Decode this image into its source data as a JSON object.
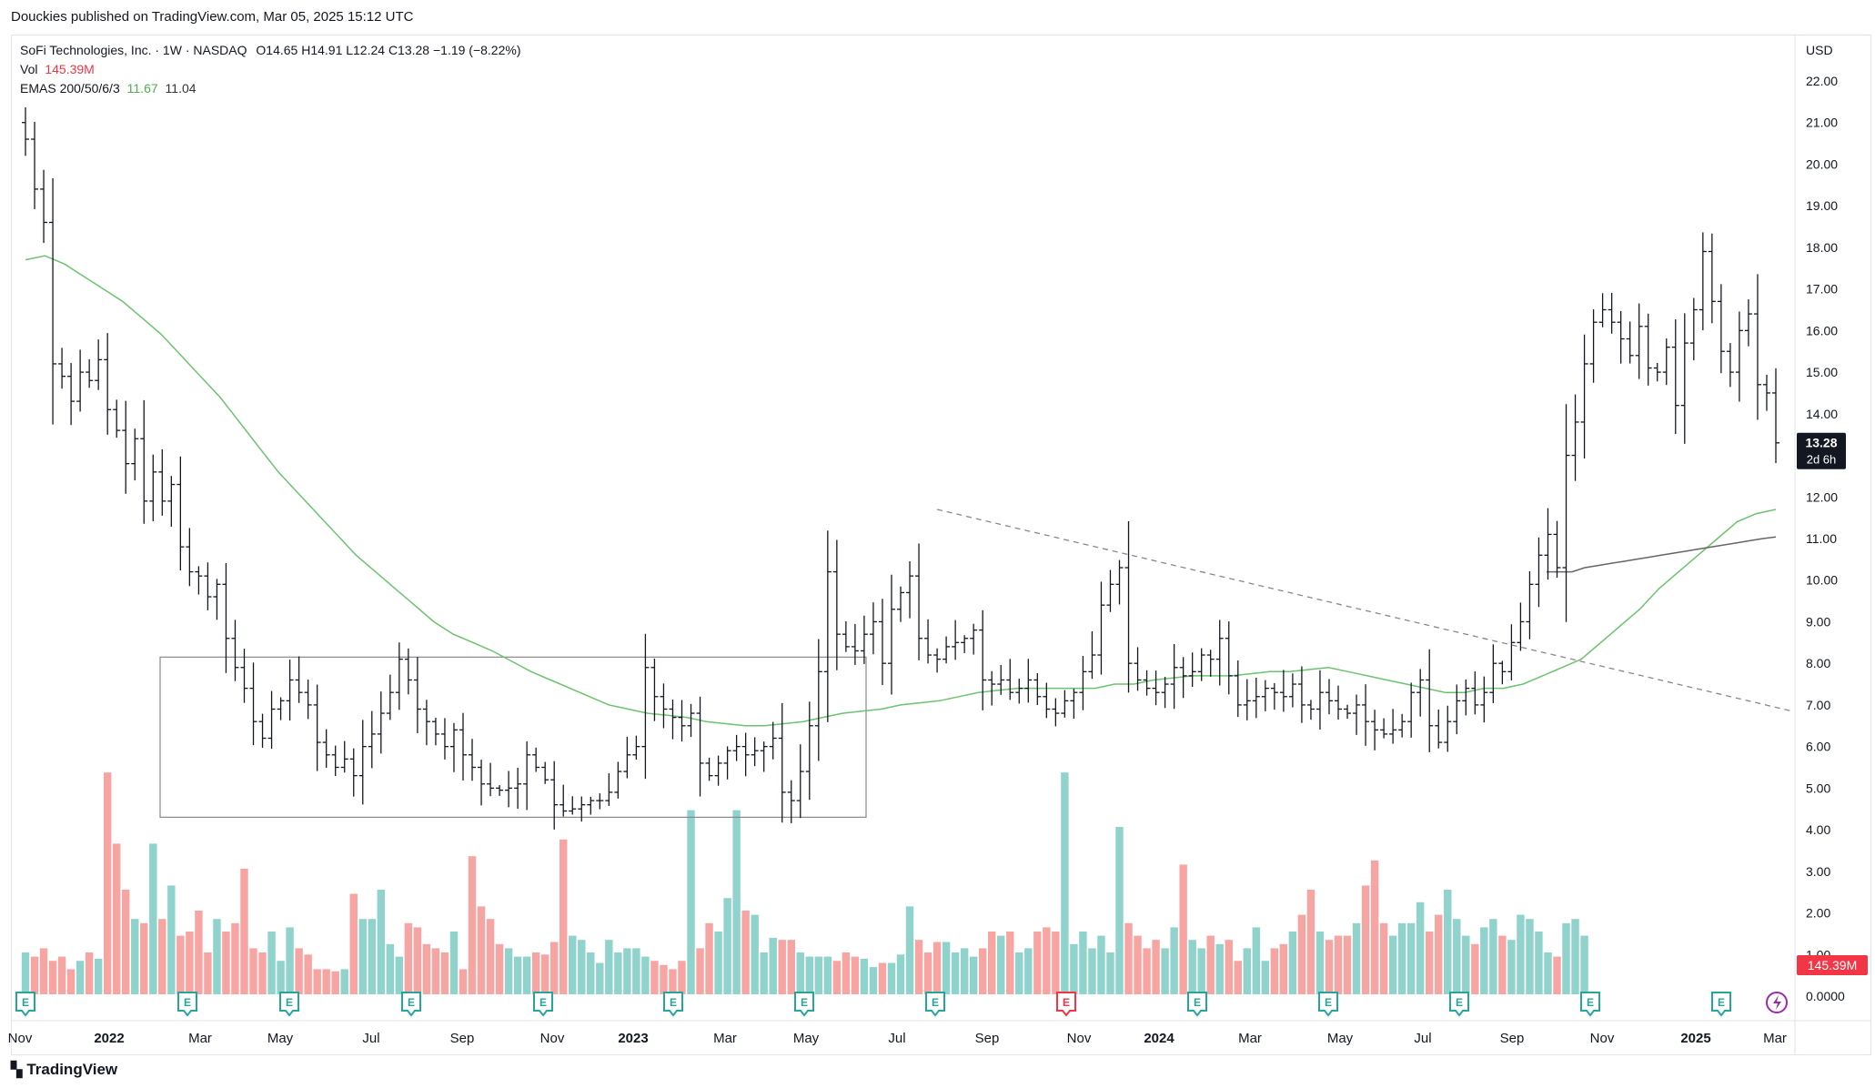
{
  "header": {
    "published": "Douckies published on TradingView.com, Mar 05, 2025 15:12 UTC"
  },
  "legend": {
    "symbol": "SoFi Technologies, Inc. · 1W · NASDAQ",
    "ohlc": "O14.65  H14.91  L12.24  C13.28  −1.19 (−8.22%)",
    "vol_label": "Vol",
    "vol_value": "145.39M",
    "ema_label": "EMAS 200/50/6/3",
    "ema_value_1": "11.67",
    "ema_value_2": "11.04"
  },
  "footer": {
    "brand": "TradingView"
  },
  "chart_data": {
    "type": "ohlc",
    "currency": "USD",
    "price_axis_ticks": [
      "22.00",
      "21.00",
      "20.00",
      "19.00",
      "18.00",
      "17.00",
      "16.00",
      "15.00",
      "14.00",
      "13.00",
      "12.00",
      "11.00",
      "10.00",
      "9.00",
      "8.00",
      "7.00",
      "6.00",
      "5.00",
      "4.00",
      "3.00",
      "2.00",
      "1.00",
      "0.0000"
    ],
    "time_axis_labels": [
      "Nov",
      "2022",
      "Mar",
      "May",
      "Jul",
      "Sep",
      "Nov",
      "2023",
      "Mar",
      "May",
      "Jul",
      "Sep",
      "Nov",
      "2024",
      "Mar",
      "May",
      "Jul",
      "Sep",
      "Nov",
      "2025",
      "Mar"
    ],
    "last_price": "13.28",
    "countdown": "2d 6h",
    "last_volume": "145.39M",
    "closes": [
      20.6,
      19.4,
      18.6,
      15.2,
      14.9,
      14.3,
      15.0,
      14.8,
      15.3,
      14.1,
      13.6,
      12.8,
      13.4,
      11.9,
      12.6,
      11.9,
      12.3,
      10.8,
      10.2,
      10.1,
      9.6,
      9.9,
      8.6,
      7.9,
      7.4,
      6.6,
      6.2,
      6.9,
      7.1,
      7.6,
      7.3,
      7.0,
      6.1,
      5.8,
      5.5,
      5.7,
      5.3,
      6.0,
      6.3,
      6.8,
      7.3,
      8.1,
      7.6,
      6.9,
      6.6,
      6.3,
      6.0,
      6.4,
      5.8,
      5.5,
      5.1,
      5.0,
      4.95,
      5.0,
      5.1,
      5.8,
      5.5,
      5.2,
      4.6,
      4.45,
      4.5,
      4.6,
      4.7,
      4.7,
      4.9,
      5.4,
      5.8,
      6.0,
      7.9,
      7.2,
      6.9,
      6.7,
      6.5,
      6.8,
      5.6,
      5.3,
      5.6,
      5.9,
      6.0,
      5.8,
      5.9,
      6.0,
      6.2,
      4.9,
      4.7,
      5.4,
      6.5,
      7.8,
      10.2,
      8.7,
      8.4,
      8.3,
      8.7,
      9.0,
      8.0,
      9.3,
      9.7,
      10.1,
      8.6,
      8.2,
      8.1,
      8.4,
      8.5,
      8.6,
      8.8,
      7.6,
      7.5,
      7.6,
      7.3,
      7.4,
      7.6,
      7.2,
      6.9,
      6.8,
      7.1,
      7.3,
      7.8,
      8.2,
      9.4,
      9.9,
      10.3,
      8.0,
      7.6,
      7.4,
      7.3,
      7.5,
      7.9,
      7.7,
      7.8,
      8.2,
      8.1,
      8.6,
      7.7,
      7.0,
      7.1,
      7.2,
      7.4,
      7.3,
      7.2,
      7.5,
      7.0,
      6.9,
      7.3,
      7.1,
      6.9,
      6.8,
      7.0,
      6.6,
      6.4,
      6.3,
      6.4,
      6.6,
      7.3,
      7.6,
      6.5,
      6.1,
      6.6,
      7.1,
      7.4,
      7.0,
      7.3,
      8.0,
      7.8,
      8.5,
      9.0,
      9.9,
      10.6,
      11.1,
      10.3,
      13.0,
      13.8,
      15.2,
      16.2,
      16.5,
      16.2,
      15.8,
      15.4,
      16.1,
      15.1,
      15.0,
      15.6,
      14.2,
      15.7,
      16.5,
      17.9,
      16.7,
      15.5,
      15.0,
      16.0,
      16.4,
      14.7,
      14.5,
      13.3
    ],
    "volumes": [
      1.0,
      0.9,
      1.1,
      0.8,
      0.9,
      0.6,
      0.8,
      1.0,
      0.85,
      5.3,
      3.6,
      2.5,
      1.8,
      1.7,
      3.6,
      1.8,
      2.6,
      1.4,
      1.5,
      2.0,
      1.0,
      1.8,
      1.5,
      1.7,
      3.0,
      1.1,
      1.0,
      1.5,
      0.8,
      1.6,
      1.1,
      0.95,
      0.6,
      0.6,
      0.55,
      0.6,
      2.4,
      1.8,
      1.8,
      2.5,
      1.2,
      0.9,
      1.7,
      1.6,
      1.2,
      1.1,
      1.0,
      1.5,
      0.6,
      3.3,
      2.1,
      1.8,
      1.2,
      1.1,
      0.9,
      0.9,
      1.0,
      0.95,
      1.25,
      3.7,
      1.4,
      1.3,
      1.0,
      0.75,
      1.3,
      1.0,
      1.1,
      1.1,
      0.9,
      0.8,
      0.7,
      0.6,
      0.8,
      4.4,
      1.1,
      1.7,
      1.5,
      2.3,
      4.4,
      2.0,
      1.9,
      1.0,
      1.35,
      1.3,
      1.3,
      1.0,
      0.9,
      0.9,
      0.9,
      0.8,
      1.0,
      0.9,
      0.85,
      0.65,
      0.75,
      0.75,
      0.95,
      2.1,
      1.3,
      1.0,
      1.25,
      1.25,
      1.0,
      1.1,
      0.9,
      1.1,
      1.5,
      1.4,
      1.5,
      1.0,
      1.1,
      1.5,
      1.6,
      1.5,
      5.3,
      1.2,
      1.5,
      1.1,
      1.4,
      1.0,
      4.0,
      1.7,
      1.4,
      1.1,
      1.3,
      1.1,
      1.6,
      3.1,
      1.3,
      1.1,
      1.4,
      1.2,
      1.3,
      0.8,
      1.1,
      1.6,
      0.8,
      1.1,
      1.2,
      1.5,
      1.9,
      2.5,
      1.5,
      1.3,
      1.4,
      1.4,
      1.7,
      2.6,
      3.2,
      1.7,
      1.4,
      1.7,
      1.7,
      2.2,
      1.5,
      1.9,
      2.5,
      1.8,
      1.4,
      1.2,
      1.6,
      1.8,
      1.4,
      1.3,
      1.9,
      1.8,
      1.5,
      1.0,
      0.9,
      1.7,
      1.8,
      1.4
    ],
    "ema_green": [
      17.7,
      17.8,
      17.6,
      17.3,
      17.0,
      16.7,
      16.3,
      15.9,
      15.4,
      14.9,
      14.4,
      13.8,
      13.2,
      12.6,
      12.1,
      11.6,
      11.1,
      10.6,
      10.2,
      9.8,
      9.4,
      9.0,
      8.7,
      8.5,
      8.3,
      8.05,
      7.8,
      7.6,
      7.4,
      7.2,
      7.0,
      6.9,
      6.8,
      6.75,
      6.7,
      6.6,
      6.55,
      6.5,
      6.5,
      6.55,
      6.6,
      6.7,
      6.8,
      6.85,
      6.9,
      7.0,
      7.05,
      7.1,
      7.2,
      7.3,
      7.35,
      7.4,
      7.4,
      7.4,
      7.4,
      7.4,
      7.5,
      7.5,
      7.6,
      7.65,
      7.7,
      7.7,
      7.7,
      7.75,
      7.8,
      7.8,
      7.85,
      7.9,
      7.8,
      7.7,
      7.6,
      7.5,
      7.4,
      7.3,
      7.3,
      7.4,
      7.4,
      7.5,
      7.7,
      7.9,
      8.1,
      8.5,
      8.9,
      9.3,
      9.8,
      10.2,
      10.6,
      11.0,
      11.4,
      11.6,
      11.7
    ],
    "ema_gray": [
      10.2,
      10.2,
      10.2,
      10.3,
      10.35,
      10.4,
      10.45,
      10.5,
      10.55,
      10.6,
      10.65,
      10.7,
      10.75,
      10.8,
      10.85,
      10.9,
      10.95,
      11.0,
      11.04
    ],
    "trendline": {
      "start_price": 11.7,
      "end_price": 6.85
    },
    "consolidation_box": {
      "price_top": 8.15,
      "price_bottom": 4.3,
      "start": "2022-02",
      "end": "2023-06"
    },
    "earnings_markers": 14
  }
}
